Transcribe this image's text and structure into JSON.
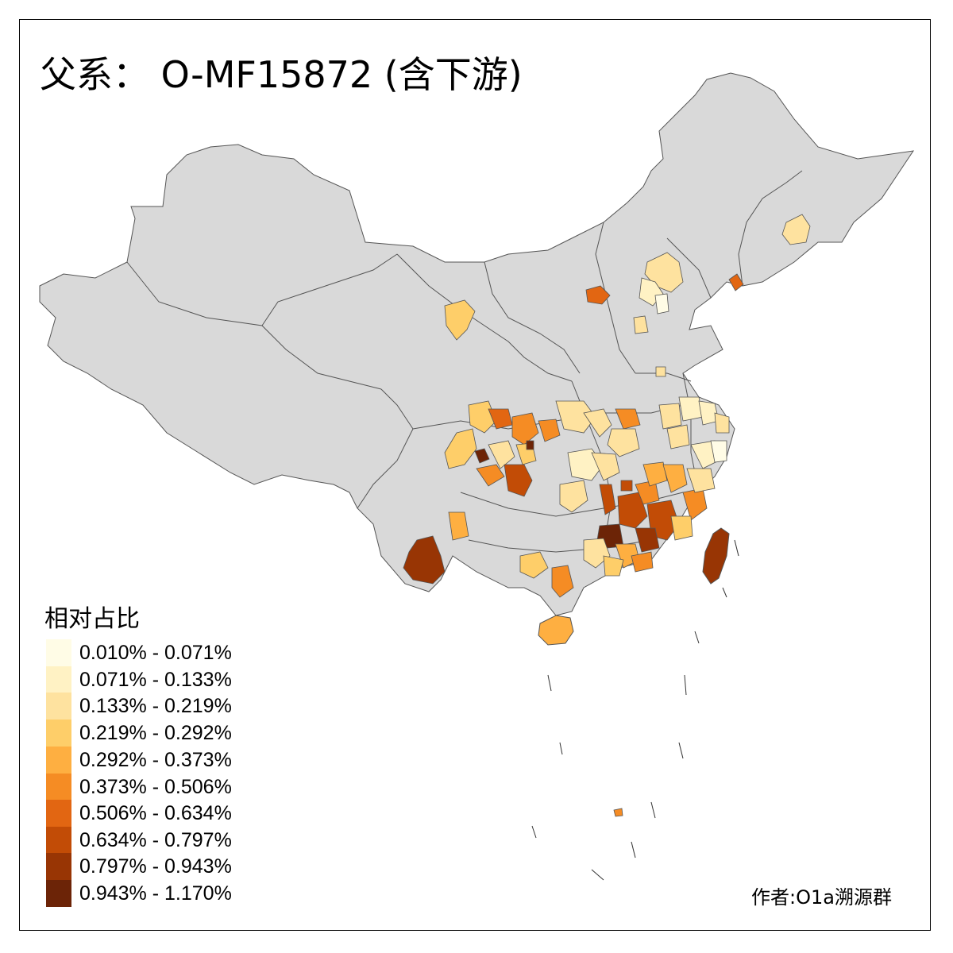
{
  "title": "父系： O-MF15872 (含下游)",
  "legend": {
    "title": "相对占比",
    "bins": [
      {
        "label": "0.010% - 0.071%",
        "color": "#FFFCE6"
      },
      {
        "label": "0.071% - 0.133%",
        "color": "#FFF2C4"
      },
      {
        "label": "0.133% - 0.219%",
        "color": "#FEE29F"
      },
      {
        "label": "0.219% - 0.292%",
        "color": "#FECE69"
      },
      {
        "label": "0.292% - 0.373%",
        "color": "#FEAF41"
      },
      {
        "label": "0.373% - 0.506%",
        "color": "#F58C24"
      },
      {
        "label": "0.506% - 0.634%",
        "color": "#E26612"
      },
      {
        "label": "0.634% - 0.797%",
        "color": "#C24C06"
      },
      {
        "label": "0.797% - 0.943%",
        "color": "#983504"
      },
      {
        "label": "0.943% - 1.170%",
        "color": "#6C2407"
      }
    ]
  },
  "author": "作者:O1a溯源群",
  "colors": {
    "base_region": "#D9D9D9",
    "border": "#555555",
    "frame": "#000000"
  }
}
